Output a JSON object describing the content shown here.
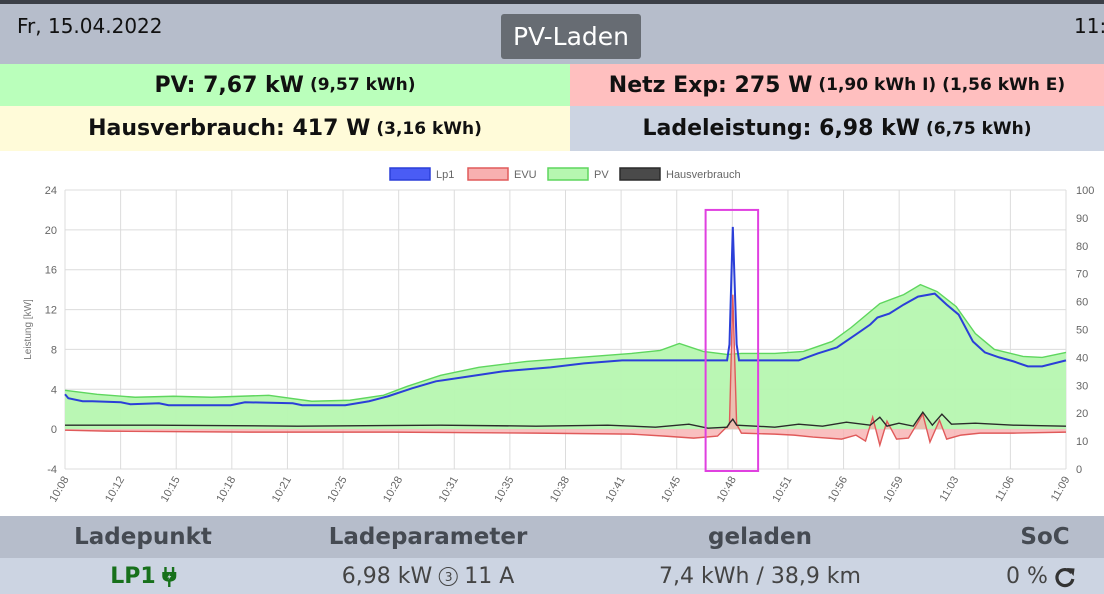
{
  "header": {
    "date": "Fr, 15.04.2022",
    "time": "11:",
    "title": "PV-Laden"
  },
  "stats": {
    "pv_value": "PV: 7,67 kW",
    "pv_sub": "(9,57 kWh)",
    "netz_value": "Netz Exp: 275 W",
    "netz_sub": "(1,90 kWh I) (1,56 kWh E)",
    "haus_value": "Hausverbrauch: 417 W",
    "haus_sub": "(3,16 kWh)",
    "lade_value": "Ladeleistung: 6,98 kW",
    "lade_sub": "(6,75 kWh)"
  },
  "colors": {
    "pv_bg": "#baffbb",
    "netz_bg": "#ffbfbf",
    "haus_bg": "#fffbd9",
    "lade_bg": "#ccd4e2",
    "header_bg": "#b6bdcb",
    "lp1_green": "#17701b",
    "highlight": "#e040e0"
  },
  "chart_data": {
    "type": "area",
    "ylabel": "Leistung [kW]",
    "ylim": [
      -4,
      24
    ],
    "yticks": [
      "24",
      "20",
      "16",
      "12",
      "8",
      "4",
      "0",
      "-4"
    ],
    "y2lim": [
      0,
      100
    ],
    "y2ticks": [
      "100",
      "90",
      "80",
      "70",
      "60",
      "50",
      "40",
      "30",
      "20",
      "10",
      "0"
    ],
    "xticks": [
      "10:08",
      "10:12",
      "10:15",
      "10:18",
      "10:21",
      "10:25",
      "10:28",
      "10:31",
      "10:35",
      "10:38",
      "10:41",
      "10:45",
      "10:48",
      "10:51",
      "10:56",
      "10:59",
      "11:03",
      "11:06",
      "11:09"
    ],
    "grid": true,
    "legend_position": "top-center",
    "series": [
      {
        "name": "Lp1",
        "color": "#2b3fd8",
        "fill": "#4a5cf5",
        "values": [
          [
            10.13,
            3.5
          ],
          [
            10.2,
            3.1
          ],
          [
            10.5,
            2.8
          ],
          [
            10.7,
            2.8
          ],
          [
            11.3,
            2.7
          ],
          [
            11.5,
            2.5
          ],
          [
            12.1,
            2.6
          ],
          [
            12.3,
            2.4
          ],
          [
            13.6,
            2.4
          ],
          [
            13.9,
            2.7
          ],
          [
            14.9,
            2.6
          ],
          [
            15.1,
            2.4
          ],
          [
            16.0,
            2.4
          ],
          [
            16.5,
            2.8
          ],
          [
            16.9,
            3.3
          ],
          [
            17.4,
            4.1
          ],
          [
            17.9,
            4.8
          ],
          [
            18.6,
            5.3
          ],
          [
            19.3,
            5.8
          ],
          [
            20.3,
            6.2
          ],
          [
            21.0,
            6.6
          ],
          [
            21.8,
            6.9
          ],
          [
            23.4,
            6.9
          ],
          [
            24.0,
            6.9
          ],
          [
            24.05,
            8.5
          ],
          [
            24.12,
            20.3
          ],
          [
            24.2,
            8.5
          ],
          [
            24.25,
            6.9
          ],
          [
            25.5,
            6.9
          ],
          [
            25.9,
            7.6
          ],
          [
            26.3,
            8.2
          ],
          [
            26.7,
            9.5
          ],
          [
            27.0,
            10.5
          ],
          [
            27.15,
            11.2
          ],
          [
            27.4,
            11.6
          ],
          [
            27.7,
            12.5
          ],
          [
            28.0,
            13.3
          ],
          [
            28.35,
            13.6
          ],
          [
            28.6,
            12.5
          ],
          [
            28.85,
            11.5
          ],
          [
            29.15,
            8.8
          ],
          [
            29.4,
            7.7
          ],
          [
            29.7,
            7.2
          ],
          [
            30.0,
            6.8
          ],
          [
            30.3,
            6.3
          ],
          [
            30.6,
            6.3
          ],
          [
            31.1,
            6.9
          ]
        ]
      },
      {
        "name": "EVU",
        "color": "#e05a5a",
        "fill": "#f8b0b0",
        "values": [
          [
            10.13,
            -0.1
          ],
          [
            11.0,
            -0.2
          ],
          [
            14.0,
            -0.3
          ],
          [
            17.0,
            -0.3
          ],
          [
            20.0,
            -0.4
          ],
          [
            22.0,
            -0.5
          ],
          [
            22.7,
            -0.7
          ],
          [
            23.3,
            -0.9
          ],
          [
            23.8,
            -0.7
          ],
          [
            24.05,
            0.5
          ],
          [
            24.12,
            13.5
          ],
          [
            24.2,
            0.5
          ],
          [
            24.3,
            -0.4
          ],
          [
            25.0,
            -0.5
          ],
          [
            25.4,
            -0.6
          ],
          [
            25.8,
            -0.8
          ],
          [
            26.4,
            -1.0
          ],
          [
            26.7,
            -0.6
          ],
          [
            26.9,
            -1.2
          ],
          [
            27.05,
            1.2
          ],
          [
            27.2,
            -1.6
          ],
          [
            27.35,
            0.8
          ],
          [
            27.55,
            -1.0
          ],
          [
            27.8,
            -0.9
          ],
          [
            28.1,
            1.5
          ],
          [
            28.25,
            -1.3
          ],
          [
            28.45,
            0.9
          ],
          [
            28.6,
            -1.0
          ],
          [
            28.9,
            -0.6
          ],
          [
            29.3,
            -0.4
          ],
          [
            30.0,
            -0.4
          ],
          [
            31.1,
            -0.3
          ]
        ]
      },
      {
        "name": "PV",
        "color": "#5ed65e",
        "fill": "#b6f7b0",
        "values": [
          [
            10.13,
            3.9
          ],
          [
            10.8,
            3.5
          ],
          [
            11.6,
            3.2
          ],
          [
            12.4,
            3.3
          ],
          [
            13.2,
            3.2
          ],
          [
            14.4,
            3.4
          ],
          [
            15.3,
            2.8
          ],
          [
            16.1,
            2.9
          ],
          [
            16.8,
            3.4
          ],
          [
            17.3,
            4.3
          ],
          [
            18.0,
            5.4
          ],
          [
            18.8,
            6.2
          ],
          [
            19.8,
            6.8
          ],
          [
            20.9,
            7.2
          ],
          [
            22.0,
            7.6
          ],
          [
            22.6,
            7.9
          ],
          [
            23.0,
            8.6
          ],
          [
            23.5,
            7.8
          ],
          [
            24.0,
            7.5
          ],
          [
            24.3,
            7.6
          ],
          [
            25.0,
            7.6
          ],
          [
            25.6,
            7.8
          ],
          [
            26.2,
            8.8
          ],
          [
            26.6,
            10.2
          ],
          [
            27.2,
            12.6
          ],
          [
            27.7,
            13.5
          ],
          [
            28.05,
            14.5
          ],
          [
            28.4,
            13.8
          ],
          [
            28.8,
            12.3
          ],
          [
            29.2,
            9.6
          ],
          [
            29.6,
            8.0
          ],
          [
            30.2,
            7.3
          ],
          [
            30.6,
            7.2
          ],
          [
            31.1,
            7.7
          ]
        ]
      },
      {
        "name": "Hausverbrauch",
        "color": "#2b2b2b",
        "fill": "#4a4a4a",
        "values": [
          [
            10.13,
            0.4
          ],
          [
            12.0,
            0.4
          ],
          [
            15.0,
            0.3
          ],
          [
            18.0,
            0.4
          ],
          [
            20.0,
            0.3
          ],
          [
            21.5,
            0.4
          ],
          [
            22.5,
            0.2
          ],
          [
            23.2,
            0.5
          ],
          [
            23.6,
            0.1
          ],
          [
            24.0,
            0.2
          ],
          [
            24.05,
            0.6
          ],
          [
            24.12,
            1.0
          ],
          [
            24.2,
            0.4
          ],
          [
            25.0,
            0.2
          ],
          [
            25.5,
            0.5
          ],
          [
            26.0,
            0.3
          ],
          [
            26.5,
            0.7
          ],
          [
            27.0,
            0.4
          ],
          [
            27.2,
            1.2
          ],
          [
            27.35,
            0.3
          ],
          [
            27.6,
            0.6
          ],
          [
            27.9,
            0.3
          ],
          [
            28.1,
            1.7
          ],
          [
            28.3,
            0.4
          ],
          [
            28.5,
            1.5
          ],
          [
            28.7,
            0.5
          ],
          [
            29.2,
            0.6
          ],
          [
            30.0,
            0.4
          ],
          [
            31.1,
            0.3
          ]
        ]
      }
    ],
    "highlight_box": {
      "x_start": 23.55,
      "x_end": 24.65,
      "y_top": 22,
      "y_bottom": -4.2
    }
  },
  "table": {
    "headers": [
      "Ladepunkt",
      "Ladeparameter",
      "geladen",
      "SoC"
    ],
    "row": {
      "ladepunkt": "LP1",
      "ladeparameter_power": "6,98 kW",
      "ladeparameter_phases": "3",
      "ladeparameter_current": "11 A",
      "geladen": "7,4 kWh / 38,9 km",
      "soc": "0 %"
    }
  }
}
